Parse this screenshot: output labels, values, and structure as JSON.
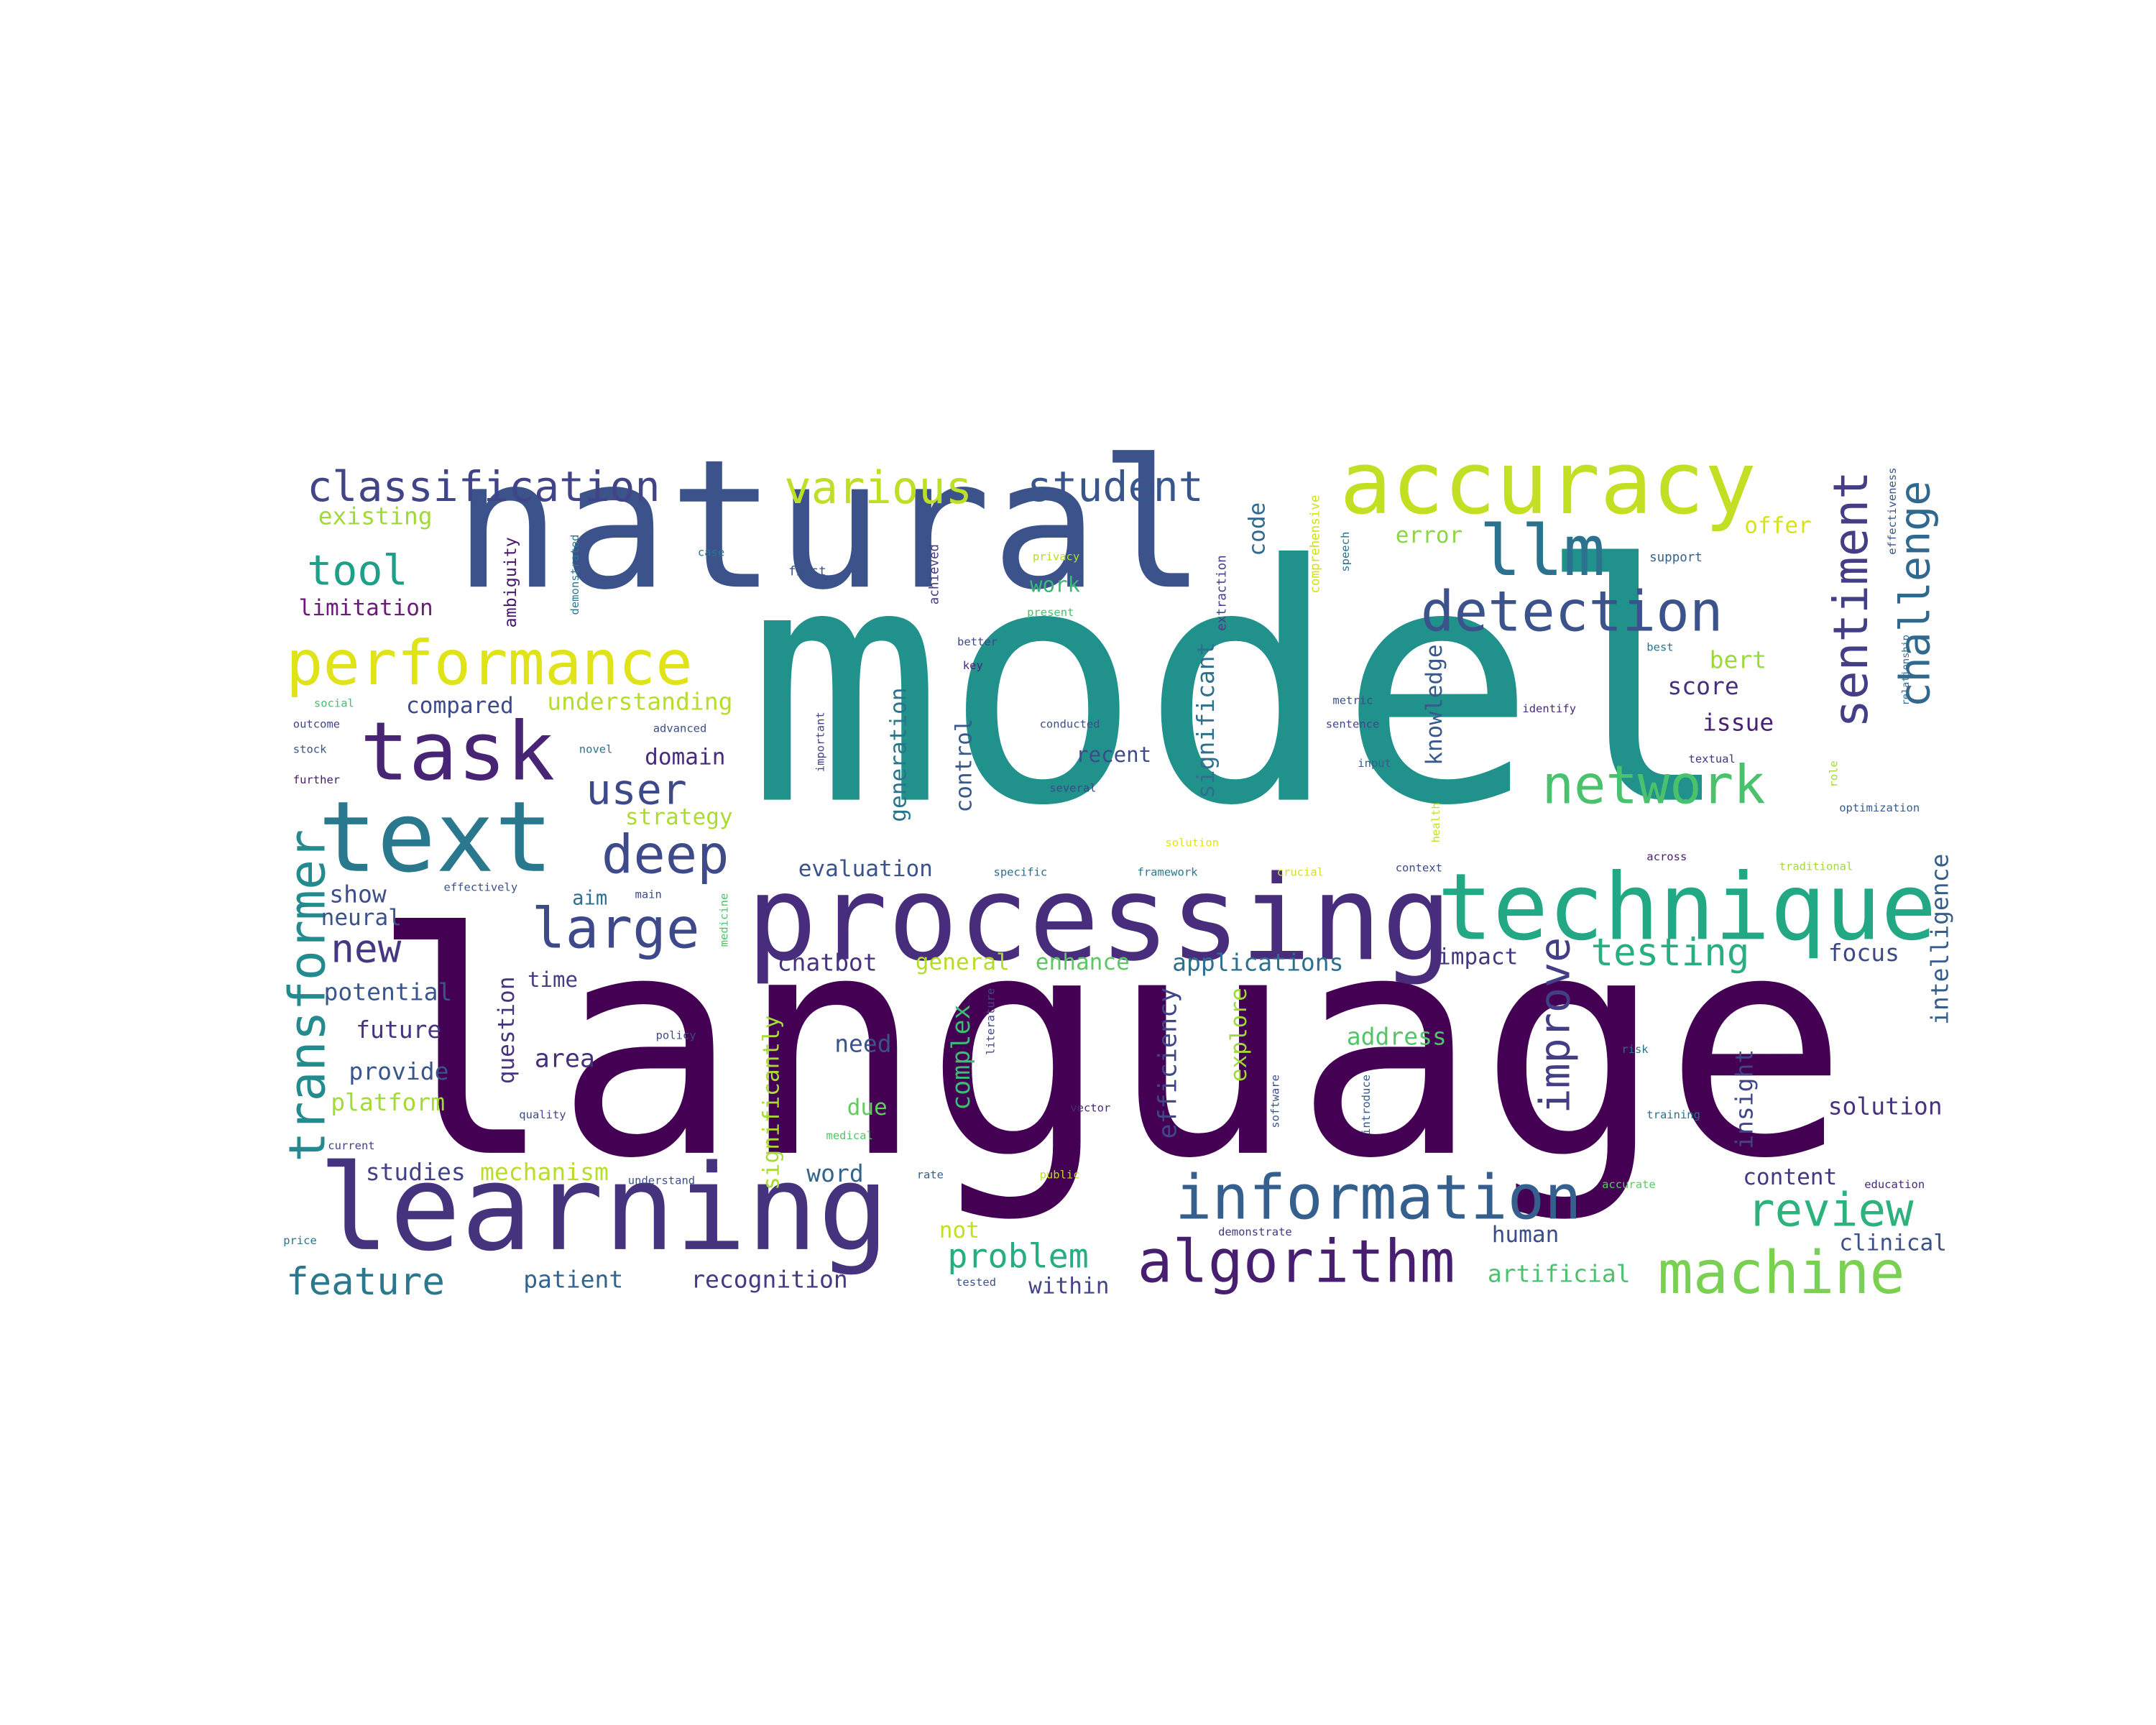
{
  "word_cloud": {
    "words": [
      {
        "id": "language",
        "text": "language",
        "color": "#440154"
      },
      {
        "id": "model",
        "text": "model",
        "color": "#21918c"
      },
      {
        "id": "natural",
        "text": "natural",
        "color": "#3b528b"
      },
      {
        "id": "processing",
        "text": "processing",
        "color": "#472d7b"
      },
      {
        "id": "learning",
        "text": "learning",
        "color": "#46337e"
      },
      {
        "id": "accuracy",
        "text": "accuracy",
        "color": "#c2df23"
      },
      {
        "id": "technique",
        "text": "technique",
        "color": "#22a884"
      },
      {
        "id": "text",
        "text": "text",
        "color": "#2a788e"
      },
      {
        "id": "task",
        "text": "task",
        "color": "#482475"
      },
      {
        "id": "performance",
        "text": "performance",
        "color": "#dfe318"
      },
      {
        "id": "information",
        "text": "information",
        "color": "#355f8d"
      },
      {
        "id": "algorithm",
        "text": "algorithm",
        "color": "#481f70"
      },
      {
        "id": "machine",
        "text": "machine",
        "color": "#7ad151"
      },
      {
        "id": "detection",
        "text": "detection",
        "color": "#3b528b"
      },
      {
        "id": "llm",
        "text": "llm",
        "color": "#2c728e"
      },
      {
        "id": "classification",
        "text": "classification",
        "color": "#414487"
      },
      {
        "id": "various",
        "text": "various",
        "color": "#bddf26"
      },
      {
        "id": "student",
        "text": "student",
        "color": "#39568c"
      },
      {
        "id": "sentiment",
        "text": "sentiment",
        "color": "#433e85"
      },
      {
        "id": "challenge",
        "text": "challenge",
        "color": "#31688e"
      },
      {
        "id": "network",
        "text": "network",
        "color": "#4ac16d"
      },
      {
        "id": "large",
        "text": "large",
        "color": "#3e4989"
      },
      {
        "id": "deep",
        "text": "deep",
        "color": "#3e4a89"
      },
      {
        "id": "transformer",
        "text": "transformer",
        "color": "#238a8d"
      },
      {
        "id": "tool",
        "text": "tool",
        "color": "#1f9e89"
      },
      {
        "id": "review",
        "text": "review",
        "color": "#2db27d"
      },
      {
        "id": "improve",
        "text": "improve",
        "color": "#433e85"
      },
      {
        "id": "user",
        "text": "user",
        "color": "#3e4989"
      },
      {
        "id": "new",
        "text": "new",
        "color": "#453781"
      },
      {
        "id": "testing",
        "text": "testing",
        "color": "#28ae80"
      },
      {
        "id": "feature",
        "text": "feature",
        "color": "#2a788e"
      },
      {
        "id": "problem",
        "text": "problem",
        "color": "#27ad81"
      },
      {
        "id": "existing",
        "text": "existing",
        "color": "#a0da39"
      },
      {
        "id": "limitation",
        "text": "limitation",
        "color": "#6b1c78"
      },
      {
        "id": "compared",
        "text": "compared",
        "color": "#3e4a89"
      },
      {
        "id": "understanding",
        "text": "understanding",
        "color": "#b5de2b"
      },
      {
        "id": "domain",
        "text": "domain",
        "color": "#472c7a"
      },
      {
        "id": "strategy",
        "text": "strategy",
        "color": "#addc30"
      },
      {
        "id": "evaluation",
        "text": "evaluation",
        "color": "#3b528b"
      },
      {
        "id": "show",
        "text": "show",
        "color": "#3d4e8a"
      },
      {
        "id": "neural",
        "text": "neural",
        "color": "#3b528b"
      },
      {
        "id": "aim",
        "text": "aim",
        "color": "#2d708e"
      },
      {
        "id": "potential",
        "text": "potential",
        "color": "#39568c"
      },
      {
        "id": "time",
        "text": "time",
        "color": "#433e85"
      },
      {
        "id": "future",
        "text": "future",
        "color": "#453581"
      },
      {
        "id": "provide",
        "text": "provide",
        "color": "#3a548c"
      },
      {
        "id": "platform",
        "text": "platform",
        "color": "#a2da37"
      },
      {
        "id": "area",
        "text": "area",
        "color": "#472f7d"
      },
      {
        "id": "question",
        "text": "question",
        "color": "#463480"
      },
      {
        "id": "studies",
        "text": "studies",
        "color": "#424186"
      },
      {
        "id": "mechanism",
        "text": "mechanism",
        "color": "#b8de29"
      },
      {
        "id": "word",
        "text": "word",
        "color": "#32658e"
      },
      {
        "id": "patient",
        "text": "patient",
        "color": "#32648e"
      },
      {
        "id": "recognition",
        "text": "recognition",
        "color": "#443a83"
      },
      {
        "id": "chatbot",
        "text": "chatbot",
        "color": "#46327e"
      },
      {
        "id": "general",
        "text": "general",
        "color": "#b2dd2d"
      },
      {
        "id": "enhance",
        "text": "enhance",
        "color": "#5cc863"
      },
      {
        "id": "applications",
        "text": "applications",
        "color": "#2e6e8e"
      },
      {
        "id": "impact",
        "text": "impact",
        "color": "#453882"
      },
      {
        "id": "focus",
        "text": "focus",
        "color": "#3e4989"
      },
      {
        "id": "need",
        "text": "need",
        "color": "#3b528b"
      },
      {
        "id": "due",
        "text": "due",
        "color": "#63cb5f"
      },
      {
        "id": "complex",
        "text": "complex",
        "color": "#3dbc74"
      },
      {
        "id": "significantly",
        "text": "significantly",
        "color": "#a8db34"
      },
      {
        "id": "efficiency",
        "text": "efficiency",
        "color": "#404688"
      },
      {
        "id": "explore",
        "text": "explore",
        "color": "#9dd93b"
      },
      {
        "id": "address",
        "text": "address",
        "color": "#52c569"
      },
      {
        "id": "insight",
        "text": "insight",
        "color": "#404588"
      },
      {
        "id": "solution",
        "text": "solution",
        "color": "#46337e"
      },
      {
        "id": "content",
        "text": "content",
        "color": "#453882"
      },
      {
        "id": "human",
        "text": "human",
        "color": "#3d4d8a"
      },
      {
        "id": "not",
        "text": "not",
        "color": "#c0df25"
      },
      {
        "id": "within",
        "text": "within",
        "color": "#414487"
      },
      {
        "id": "artificial",
        "text": "artificial",
        "color": "#4cc26c"
      },
      {
        "id": "clinical",
        "text": "clinical",
        "color": "#3b518b"
      },
      {
        "id": "intelligence",
        "text": "intelligence",
        "color": "#355e8d"
      },
      {
        "id": "control",
        "text": "control",
        "color": "#38598c"
      },
      {
        "id": "generation",
        "text": "generation",
        "color": "#2b748e"
      },
      {
        "id": "significant",
        "text": "significant",
        "color": "#2e6f8e"
      },
      {
        "id": "recent",
        "text": "recent",
        "color": "#3e4a89"
      },
      {
        "id": "knowledge",
        "text": "knowledge",
        "color": "#37598c"
      },
      {
        "id": "score",
        "text": "score",
        "color": "#46307e"
      },
      {
        "id": "issue",
        "text": "issue",
        "color": "#482173"
      },
      {
        "id": "bert",
        "text": "bert",
        "color": "#9bd93c"
      },
      {
        "id": "code",
        "text": "code",
        "color": "#30698e"
      },
      {
        "id": "error",
        "text": "error",
        "color": "#8bd646"
      },
      {
        "id": "offer",
        "text": "offer",
        "color": "#d8e219"
      },
      {
        "id": "work",
        "text": "work",
        "color": "#38b977"
      },
      {
        "id": "ambiguity",
        "text": "ambiguity",
        "color": "#481769"
      },
      {
        "id": "first",
        "text": "first",
        "color": "#3b528b"
      },
      {
        "id": "achieved",
        "text": "achieved",
        "color": "#433d84"
      },
      {
        "id": "case",
        "text": "case",
        "color": "#2c738e"
      },
      {
        "id": "privacy",
        "text": "privacy",
        "color": "#b0dd2f"
      },
      {
        "id": "present",
        "text": "present",
        "color": "#48c16e"
      },
      {
        "id": "extraction",
        "text": "extraction",
        "color": "#424086"
      },
      {
        "id": "comprehensive",
        "text": "comprehensive",
        "color": "#d0e11c"
      },
      {
        "id": "support",
        "text": "support",
        "color": "#33638d"
      },
      {
        "id": "effectiveness",
        "text": "effectiveness",
        "color": "#3a548c"
      },
      {
        "id": "better",
        "text": "better",
        "color": "#3f4889"
      },
      {
        "id": "key",
        "text": "key",
        "color": "#482576"
      },
      {
        "id": "best",
        "text": "best",
        "color": "#2d718e"
      },
      {
        "id": "metric",
        "text": "metric",
        "color": "#3c4f8a"
      },
      {
        "id": "sentence",
        "text": "sentence",
        "color": "#404688"
      },
      {
        "id": "identify",
        "text": "identify",
        "color": "#482979"
      },
      {
        "id": "conducted",
        "text": "conducted",
        "color": "#3d4e8a"
      },
      {
        "id": "several",
        "text": "several",
        "color": "#3f4788"
      },
      {
        "id": "input",
        "text": "input",
        "color": "#355f8d"
      },
      {
        "id": "textual",
        "text": "textual",
        "color": "#46337e"
      },
      {
        "id": "role",
        "text": "role",
        "color": "#a5db36"
      },
      {
        "id": "relationship",
        "text": "relationship",
        "color": "#2f6c8e"
      },
      {
        "id": "optimization",
        "text": "optimization",
        "color": "#365c8d"
      },
      {
        "id": "health",
        "text": "health",
        "color": "#c5e021"
      },
      {
        "id": "solution2",
        "text": "solution",
        "color": "#e2e418"
      },
      {
        "id": "framework",
        "text": "framework",
        "color": "#2a778e"
      },
      {
        "id": "crucial",
        "text": "crucial",
        "color": "#d2e21b"
      },
      {
        "id": "context",
        "text": "context",
        "color": "#3e4989"
      },
      {
        "id": "traditional",
        "text": "traditional",
        "color": "#a2da37"
      },
      {
        "id": "specific",
        "text": "specific",
        "color": "#2f6b8e"
      },
      {
        "id": "across",
        "text": "across",
        "color": "#482173"
      },
      {
        "id": "effectively",
        "text": "effectively",
        "color": "#3b528b"
      },
      {
        "id": "main",
        "text": "main",
        "color": "#3e4a89"
      },
      {
        "id": "medicine",
        "text": "medicine",
        "color": "#4ec36b"
      },
      {
        "id": "social",
        "text": "social",
        "color": "#46c06f"
      },
      {
        "id": "outcome",
        "text": "outcome",
        "color": "#404688"
      },
      {
        "id": "stock",
        "text": "stock",
        "color": "#3b528b"
      },
      {
        "id": "further",
        "text": "further",
        "color": "#481b6d"
      },
      {
        "id": "novel",
        "text": "novel",
        "color": "#2c728e"
      },
      {
        "id": "advanced",
        "text": "advanced",
        "color": "#3d4e8a"
      },
      {
        "id": "important",
        "text": "important",
        "color": "#414487"
      },
      {
        "id": "demonstrated",
        "text": "demonstrated",
        "color": "#2a788e"
      },
      {
        "id": "speech",
        "text": "speech",
        "color": "#2d708e"
      },
      {
        "id": "policy",
        "text": "policy",
        "color": "#3e4a89"
      },
      {
        "id": "literature",
        "text": "literature",
        "color": "#404688"
      },
      {
        "id": "software",
        "text": "software",
        "color": "#3b528b"
      },
      {
        "id": "vector",
        "text": "vector",
        "color": "#472a7a"
      },
      {
        "id": "risk",
        "text": "risk",
        "color": "#2c728e"
      },
      {
        "id": "training",
        "text": "training",
        "color": "#2d708e"
      },
      {
        "id": "accurate",
        "text": "accurate",
        "color": "#5ec962"
      },
      {
        "id": "education",
        "text": "education",
        "color": "#482878"
      },
      {
        "id": "introduce",
        "text": "introduce",
        "color": "#38598c"
      },
      {
        "id": "quality",
        "text": "quality",
        "color": "#3f4788"
      },
      {
        "id": "current",
        "text": "current",
        "color": "#414487"
      },
      {
        "id": "understand",
        "text": "understand",
        "color": "#3b528b"
      },
      {
        "id": "medical",
        "text": "medical",
        "color": "#52c569"
      },
      {
        "id": "rate",
        "text": "rate",
        "color": "#34618d"
      },
      {
        "id": "public",
        "text": "public",
        "color": "#bade28"
      },
      {
        "id": "demonstrate",
        "text": "demonstrate",
        "color": "#453882"
      },
      {
        "id": "price",
        "text": "price",
        "color": "#2c728e"
      },
      {
        "id": "tested",
        "text": "tested",
        "color": "#3b528b"
      }
    ]
  }
}
